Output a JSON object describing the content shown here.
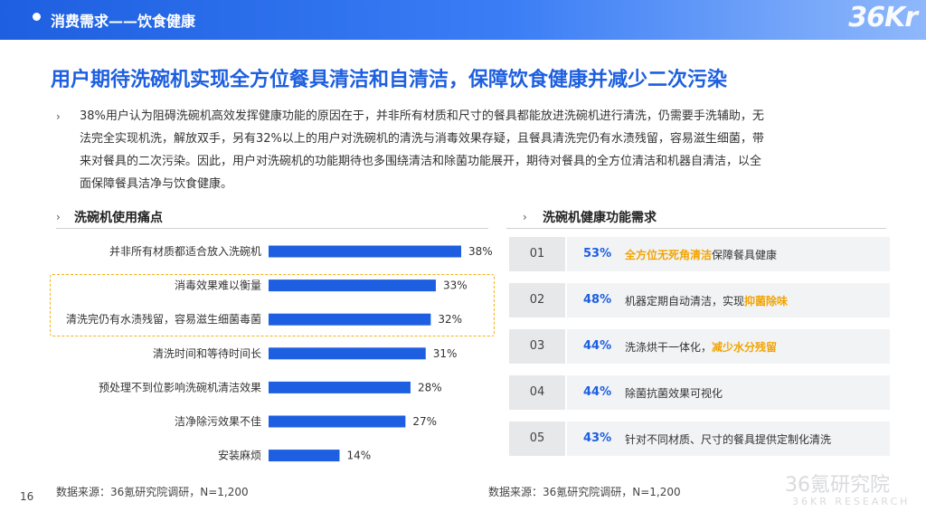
{
  "header": {
    "section_title": "消费需求——饮食健康",
    "logo": "36Kr"
  },
  "headline": "用户期待洗碗机实现全方位餐具清洁和自清洁，保障饮食健康并减少二次污染",
  "paragraph": {
    "bullet": "›",
    "lines": [
      "38%用户认为阻碍洗碗机高效发挥健康功能的原因在于，并非所有材质和尺寸的餐具都能放进洗碗机进行清洗，仍需要手洗辅助，无",
      "法完全实现机洗，解放双手，另有32%以上的用户对洗碗机的清洗与消毒效果存疑，且餐具清洗完仍有水渍残留，容易滋生细菌，带",
      "来对餐具的二次污染。因此，用户对洗碗机的功能期待也多围绕清洁和除菌功能展开，期待对餐具的全方位清洁和机器自清洁，以全",
      "面保障餐具洁净与饮食健康。"
    ]
  },
  "left_panel": {
    "bullet": "›",
    "title": "洗碗机使用痛点",
    "source": "数据来源：36氪研究院调研，N=1,200"
  },
  "right_panel": {
    "bullet": "›",
    "title": "洗碗机健康功能需求",
    "source": "数据来源：36氪研究院调研，N=1,200",
    "items": [
      {
        "num": "01",
        "pct": "53%",
        "parts": [
          {
            "t": "全方位无死角清洁",
            "hl": true
          },
          {
            "t": "保障餐具健康",
            "hl": false
          }
        ]
      },
      {
        "num": "02",
        "pct": "48%",
        "parts": [
          {
            "t": "机器定期自动清洁，实现",
            "hl": false
          },
          {
            "t": "抑菌除味",
            "hl": true
          }
        ]
      },
      {
        "num": "03",
        "pct": "44%",
        "parts": [
          {
            "t": "洗涤烘干一体化，",
            "hl": false
          },
          {
            "t": "减少水分残留",
            "hl": true
          }
        ]
      },
      {
        "num": "04",
        "pct": "44%",
        "parts": [
          {
            "t": "除菌抗菌效果可视化",
            "hl": false
          }
        ]
      },
      {
        "num": "05",
        "pct": "43%",
        "parts": [
          {
            "t": "针对不同材质、尺寸的餐具提供定制化清洗",
            "hl": false
          }
        ]
      }
    ]
  },
  "chart_data": {
    "type": "bar",
    "orientation": "horizontal",
    "categories": [
      "并非所有材质都适合放入洗碗机",
      "消毒效果难以衡量",
      "清洗完仍有水渍残留，容易滋生细菌毒菌",
      "清洗时间和等待时间长",
      "预处理不到位影响洗碗机清洁效果",
      "洁净除污效果不佳",
      "安装麻烦"
    ],
    "values": [
      38,
      33,
      32,
      31,
      28,
      27,
      14
    ],
    "value_labels": [
      "38%",
      "33%",
      "32%",
      "31%",
      "28%",
      "27%",
      "14%"
    ],
    "unit": "%",
    "highlighted_categories": [
      1,
      2
    ],
    "bar_color": "#1d5fe0",
    "highlight_color": "#f2b21b"
  },
  "footer": {
    "page": "16",
    "watermark": "36氪研究院",
    "watermark_sub": "36KR RESEARCH"
  },
  "colors": {
    "brand_blue": "#1d5fe0",
    "accent_orange": "#f2a400"
  }
}
